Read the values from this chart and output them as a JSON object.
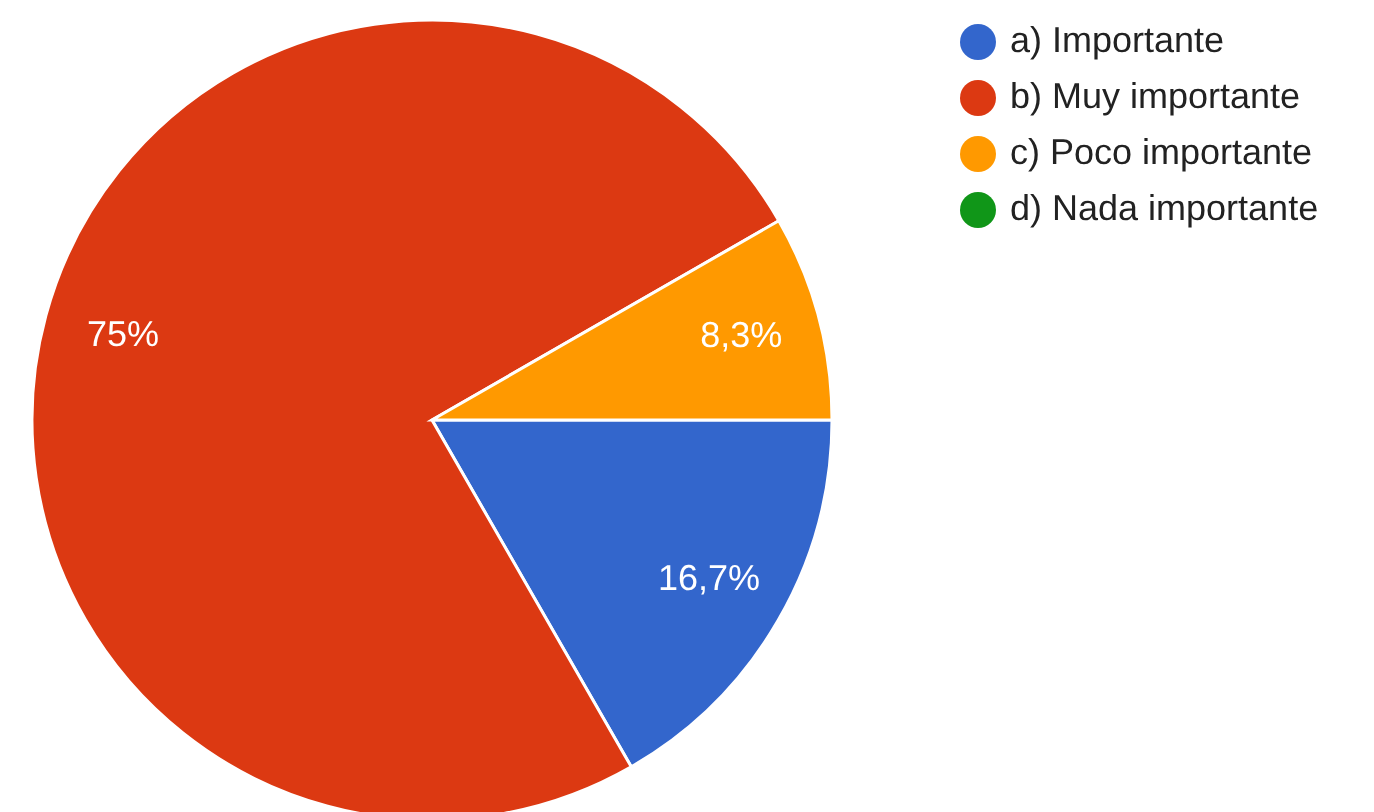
{
  "chart_data": {
    "type": "pie",
    "categories": [
      "a) Importante",
      "b) Muy importante",
      "c) Poco importante",
      "d) Nada importante"
    ],
    "values": [
      16.7,
      75,
      8.3,
      0
    ],
    "colors": [
      "#3366cc",
      "#dc3912",
      "#ff9900",
      "#109618"
    ],
    "value_labels": [
      "16,7%",
      "75%",
      "8,3%",
      null
    ],
    "legend": "right"
  }
}
